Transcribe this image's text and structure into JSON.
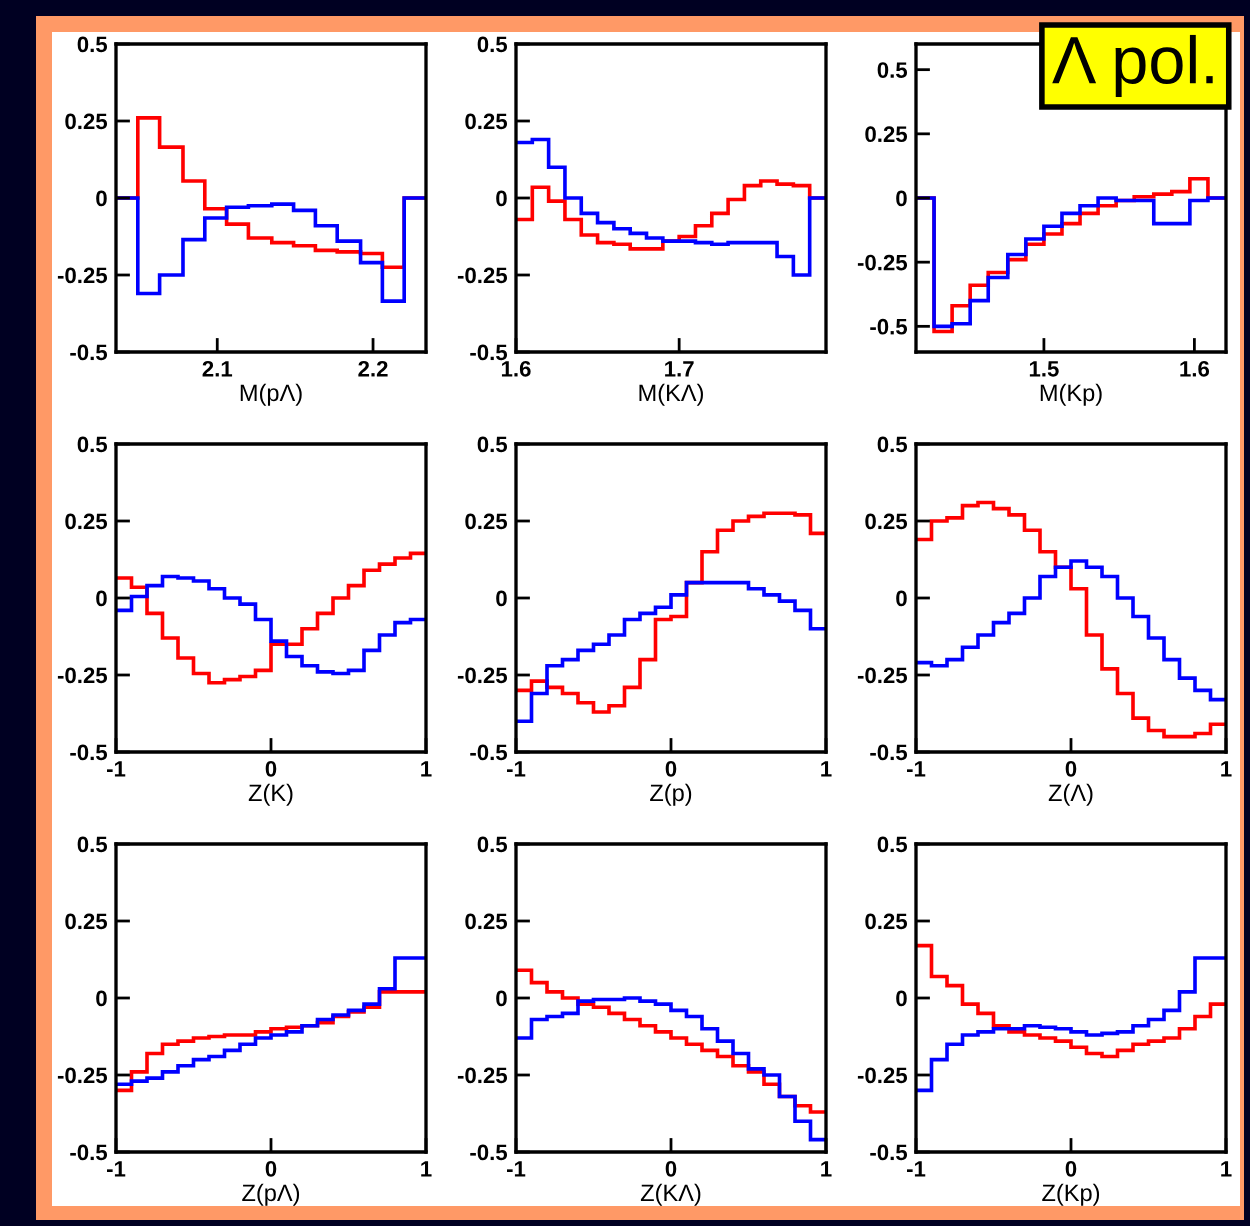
{
  "chart_data": [
    {
      "type": "histogram",
      "xlabel": "M(pΛ)",
      "bins": [
        2.035,
        2.049,
        2.063,
        2.078,
        2.092,
        2.106,
        2.12,
        2.135,
        2.149,
        2.163,
        2.177,
        2.192,
        2.206,
        2.22,
        2.234
      ],
      "xlim": [
        2.035,
        2.234
      ],
      "xticks": [
        2.1,
        2.2
      ],
      "ylim": [
        -0.5,
        0.5
      ],
      "yticks": [
        -0.5,
        -0.25,
        0,
        0.25,
        0.5
      ],
      "series": [
        {
          "color": "#ff0000",
          "values": [
            0,
            0.26,
            0.165,
            0.055,
            -0.035,
            -0.085,
            -0.13,
            -0.145,
            -0.155,
            -0.17,
            -0.175,
            -0.18,
            -0.225,
            0
          ]
        },
        {
          "color": "#0000ff",
          "values": [
            0,
            -0.31,
            -0.25,
            -0.135,
            -0.065,
            -0.03,
            -0.025,
            -0.02,
            -0.04,
            -0.09,
            -0.14,
            -0.21,
            -0.335,
            0
          ]
        }
      ]
    },
    {
      "type": "histogram",
      "xlabel": "M(KΛ)",
      "bins": [
        1.6,
        1.61,
        1.62,
        1.63,
        1.64,
        1.65,
        1.66,
        1.67,
        1.68,
        1.69,
        1.7,
        1.71,
        1.72,
        1.73,
        1.74,
        1.75,
        1.76,
        1.77,
        1.78,
        1.79
      ],
      "xlim": [
        1.6,
        1.79
      ],
      "xticks": [
        1.6,
        1.7
      ],
      "ylim": [
        -0.5,
        0.5
      ],
      "yticks": [
        -0.5,
        -0.25,
        0,
        0.25,
        0.5
      ],
      "series": [
        {
          "color": "#ff0000",
          "values": [
            -0.07,
            0.035,
            -0.01,
            -0.07,
            -0.12,
            -0.145,
            -0.15,
            -0.165,
            -0.165,
            -0.14,
            -0.125,
            -0.09,
            -0.05,
            -0.005,
            0.04,
            0.055,
            0.045,
            0.04,
            0
          ]
        },
        {
          "color": "#0000ff",
          "values": [
            0.18,
            0.19,
            0.1,
            0.0,
            -0.05,
            -0.08,
            -0.1,
            -0.115,
            -0.13,
            -0.14,
            -0.14,
            -0.145,
            -0.15,
            -0.145,
            -0.145,
            -0.145,
            -0.19,
            -0.25,
            0
          ]
        }
      ]
    },
    {
      "type": "histogram",
      "xlabel": "M(Kp)",
      "annotations": [
        "Λ pol."
      ],
      "bins": [
        1.415,
        1.427,
        1.439,
        1.451,
        1.463,
        1.476,
        1.488,
        1.5,
        1.512,
        1.524,
        1.536,
        1.548,
        1.56,
        1.573,
        1.585,
        1.597,
        1.609,
        1.621
      ],
      "xlim": [
        1.415,
        1.621
      ],
      "xticks": [
        1.5,
        1.6
      ],
      "ylim": [
        -0.6,
        0.6
      ],
      "yticks": [
        -0.5,
        -0.25,
        0,
        0.25,
        0.5
      ],
      "series": [
        {
          "color": "#ff0000",
          "values": [
            0,
            -0.52,
            -0.42,
            -0.34,
            -0.29,
            -0.24,
            -0.18,
            -0.14,
            -0.1,
            -0.06,
            -0.03,
            -0.01,
            0.005,
            0.015,
            0.025,
            0.075,
            0
          ]
        },
        {
          "color": "#0000ff",
          "values": [
            0,
            -0.5,
            -0.49,
            -0.4,
            -0.31,
            -0.22,
            -0.16,
            -0.11,
            -0.06,
            -0.03,
            0.0,
            -0.01,
            -0.01,
            -0.1,
            -0.1,
            -0.01,
            0
          ]
        }
      ]
    },
    {
      "type": "histogram",
      "xlabel": "Z(K)",
      "bins": [
        -1,
        -0.9,
        -0.8,
        -0.7,
        -0.6,
        -0.5,
        -0.4,
        -0.3,
        -0.2,
        -0.1,
        0,
        0.1,
        0.2,
        0.3,
        0.4,
        0.5,
        0.6,
        0.7,
        0.8,
        0.9,
        1
      ],
      "xlim": [
        -1,
        1
      ],
      "xticks": [
        -1,
        0,
        1
      ],
      "ylim": [
        -0.5,
        0.5
      ],
      "yticks": [
        -0.5,
        -0.25,
        0,
        0.25,
        0.5
      ],
      "series": [
        {
          "color": "#ff0000",
          "values": [
            0.065,
            0.035,
            -0.05,
            -0.13,
            -0.195,
            -0.245,
            -0.275,
            -0.265,
            -0.255,
            -0.235,
            -0.15,
            -0.15,
            -0.1,
            -0.05,
            0.0,
            0.04,
            0.09,
            0.11,
            0.13,
            0.145
          ]
        },
        {
          "color": "#0000ff",
          "values": [
            -0.04,
            0.005,
            0.04,
            0.07,
            0.065,
            0.055,
            0.03,
            0.0,
            -0.02,
            -0.07,
            -0.14,
            -0.19,
            -0.22,
            -0.24,
            -0.245,
            -0.235,
            -0.17,
            -0.12,
            -0.08,
            -0.07
          ]
        }
      ]
    },
    {
      "type": "histogram",
      "xlabel": "Z(p)",
      "bins": [
        -1,
        -0.9,
        -0.8,
        -0.7,
        -0.6,
        -0.5,
        -0.4,
        -0.3,
        -0.2,
        -0.1,
        0,
        0.1,
        0.2,
        0.3,
        0.4,
        0.5,
        0.6,
        0.7,
        0.8,
        0.9,
        1
      ],
      "xlim": [
        -1,
        1
      ],
      "xticks": [
        -1,
        0,
        1
      ],
      "ylim": [
        -0.5,
        0.5
      ],
      "yticks": [
        -0.5,
        -0.25,
        0,
        0.25,
        0.5
      ],
      "series": [
        {
          "color": "#ff0000",
          "values": [
            -0.3,
            -0.27,
            -0.29,
            -0.31,
            -0.34,
            -0.37,
            -0.35,
            -0.29,
            -0.2,
            -0.07,
            -0.06,
            0.05,
            0.15,
            0.22,
            0.25,
            0.265,
            0.275,
            0.275,
            0.27,
            0.21
          ]
        },
        {
          "color": "#0000ff",
          "values": [
            -0.4,
            -0.31,
            -0.22,
            -0.2,
            -0.17,
            -0.15,
            -0.12,
            -0.07,
            -0.05,
            -0.03,
            0.01,
            0.05,
            0.05,
            0.05,
            0.05,
            0.03,
            0.01,
            -0.01,
            -0.04,
            -0.1
          ]
        }
      ]
    },
    {
      "type": "histogram",
      "xlabel": "Z(Λ)",
      "bins": [
        -1,
        -0.9,
        -0.8,
        -0.7,
        -0.6,
        -0.5,
        -0.4,
        -0.3,
        -0.2,
        -0.1,
        0,
        0.1,
        0.2,
        0.3,
        0.4,
        0.5,
        0.6,
        0.7,
        0.8,
        0.9,
        1
      ],
      "xlim": [
        -1,
        1
      ],
      "xticks": [
        -1,
        0,
        1
      ],
      "ylim": [
        -0.5,
        0.5
      ],
      "yticks": [
        -0.5,
        -0.25,
        0,
        0.25,
        0.5
      ],
      "series": [
        {
          "color": "#ff0000",
          "values": [
            0.19,
            0.25,
            0.26,
            0.3,
            0.31,
            0.29,
            0.27,
            0.22,
            0.15,
            0.1,
            0.03,
            -0.12,
            -0.23,
            -0.31,
            -0.39,
            -0.43,
            -0.45,
            -0.45,
            -0.44,
            -0.41
          ]
        },
        {
          "color": "#0000ff",
          "values": [
            -0.21,
            -0.22,
            -0.2,
            -0.16,
            -0.12,
            -0.08,
            -0.05,
            0.0,
            0.07,
            0.1,
            0.12,
            0.1,
            0.07,
            0.0,
            -0.06,
            -0.13,
            -0.2,
            -0.26,
            -0.3,
            -0.33
          ]
        }
      ]
    },
    {
      "type": "histogram",
      "xlabel": "Z(pΛ)",
      "bins": [
        -1,
        -0.9,
        -0.8,
        -0.7,
        -0.6,
        -0.5,
        -0.4,
        -0.3,
        -0.2,
        -0.1,
        0,
        0.1,
        0.2,
        0.3,
        0.4,
        0.5,
        0.6,
        0.7,
        0.8,
        0.9,
        1
      ],
      "xlim": [
        -1,
        1
      ],
      "xticks": [
        -1,
        0,
        1
      ],
      "ylim": [
        -0.5,
        0.5
      ],
      "yticks": [
        -0.5,
        -0.25,
        0,
        0.25,
        0.5
      ],
      "series": [
        {
          "color": "#ff0000",
          "values": [
            -0.3,
            -0.24,
            -0.18,
            -0.15,
            -0.14,
            -0.13,
            -0.125,
            -0.12,
            -0.12,
            -0.11,
            -0.1,
            -0.095,
            -0.09,
            -0.08,
            -0.06,
            -0.045,
            -0.03,
            0.02,
            0.02,
            0.02
          ]
        },
        {
          "color": "#0000ff",
          "values": [
            -0.28,
            -0.27,
            -0.26,
            -0.24,
            -0.22,
            -0.2,
            -0.19,
            -0.17,
            -0.15,
            -0.13,
            -0.12,
            -0.11,
            -0.09,
            -0.07,
            -0.055,
            -0.04,
            -0.02,
            0.03,
            0.13,
            0.13
          ]
        }
      ]
    },
    {
      "type": "histogram",
      "xlabel": "Z(KΛ)",
      "bins": [
        -1,
        -0.9,
        -0.8,
        -0.7,
        -0.6,
        -0.5,
        -0.4,
        -0.3,
        -0.2,
        -0.1,
        0,
        0.1,
        0.2,
        0.3,
        0.4,
        0.5,
        0.6,
        0.7,
        0.8,
        0.9,
        1
      ],
      "xlim": [
        -1,
        1
      ],
      "xticks": [
        -1,
        0,
        1
      ],
      "ylim": [
        -0.5,
        0.5
      ],
      "yticks": [
        -0.5,
        -0.25,
        0,
        0.25,
        0.5
      ],
      "series": [
        {
          "color": "#ff0000",
          "values": [
            0.09,
            0.05,
            0.02,
            0.0,
            -0.02,
            -0.03,
            -0.05,
            -0.07,
            -0.09,
            -0.11,
            -0.13,
            -0.15,
            -0.17,
            -0.19,
            -0.22,
            -0.24,
            -0.28,
            -0.32,
            -0.35,
            -0.37
          ]
        },
        {
          "color": "#0000ff",
          "values": [
            -0.13,
            -0.07,
            -0.06,
            -0.05,
            -0.01,
            -0.005,
            -0.005,
            0.0,
            -0.01,
            -0.02,
            -0.04,
            -0.06,
            -0.1,
            -0.14,
            -0.18,
            -0.23,
            -0.25,
            -0.32,
            -0.4,
            -0.46
          ]
        }
      ]
    },
    {
      "type": "histogram",
      "xlabel": "Z(Kp)",
      "bins": [
        -1,
        -0.9,
        -0.8,
        -0.7,
        -0.6,
        -0.5,
        -0.4,
        -0.3,
        -0.2,
        -0.1,
        0,
        0.1,
        0.2,
        0.3,
        0.4,
        0.5,
        0.6,
        0.7,
        0.8,
        0.9,
        1
      ],
      "xlim": [
        -1,
        1
      ],
      "xticks": [
        -1,
        0,
        1
      ],
      "ylim": [
        -0.5,
        0.5
      ],
      "yticks": [
        -0.5,
        -0.25,
        0,
        0.25,
        0.5
      ],
      "series": [
        {
          "color": "#ff0000",
          "values": [
            0.17,
            0.07,
            0.04,
            -0.02,
            -0.05,
            -0.09,
            -0.11,
            -0.12,
            -0.13,
            -0.14,
            -0.16,
            -0.18,
            -0.19,
            -0.17,
            -0.15,
            -0.14,
            -0.13,
            -0.1,
            -0.06,
            -0.02
          ]
        },
        {
          "color": "#0000ff",
          "values": [
            -0.3,
            -0.2,
            -0.15,
            -0.12,
            -0.11,
            -0.1,
            -0.1,
            -0.09,
            -0.095,
            -0.1,
            -0.11,
            -0.12,
            -0.115,
            -0.11,
            -0.09,
            -0.07,
            -0.04,
            0.02,
            0.13,
            0.13
          ]
        }
      ]
    }
  ]
}
